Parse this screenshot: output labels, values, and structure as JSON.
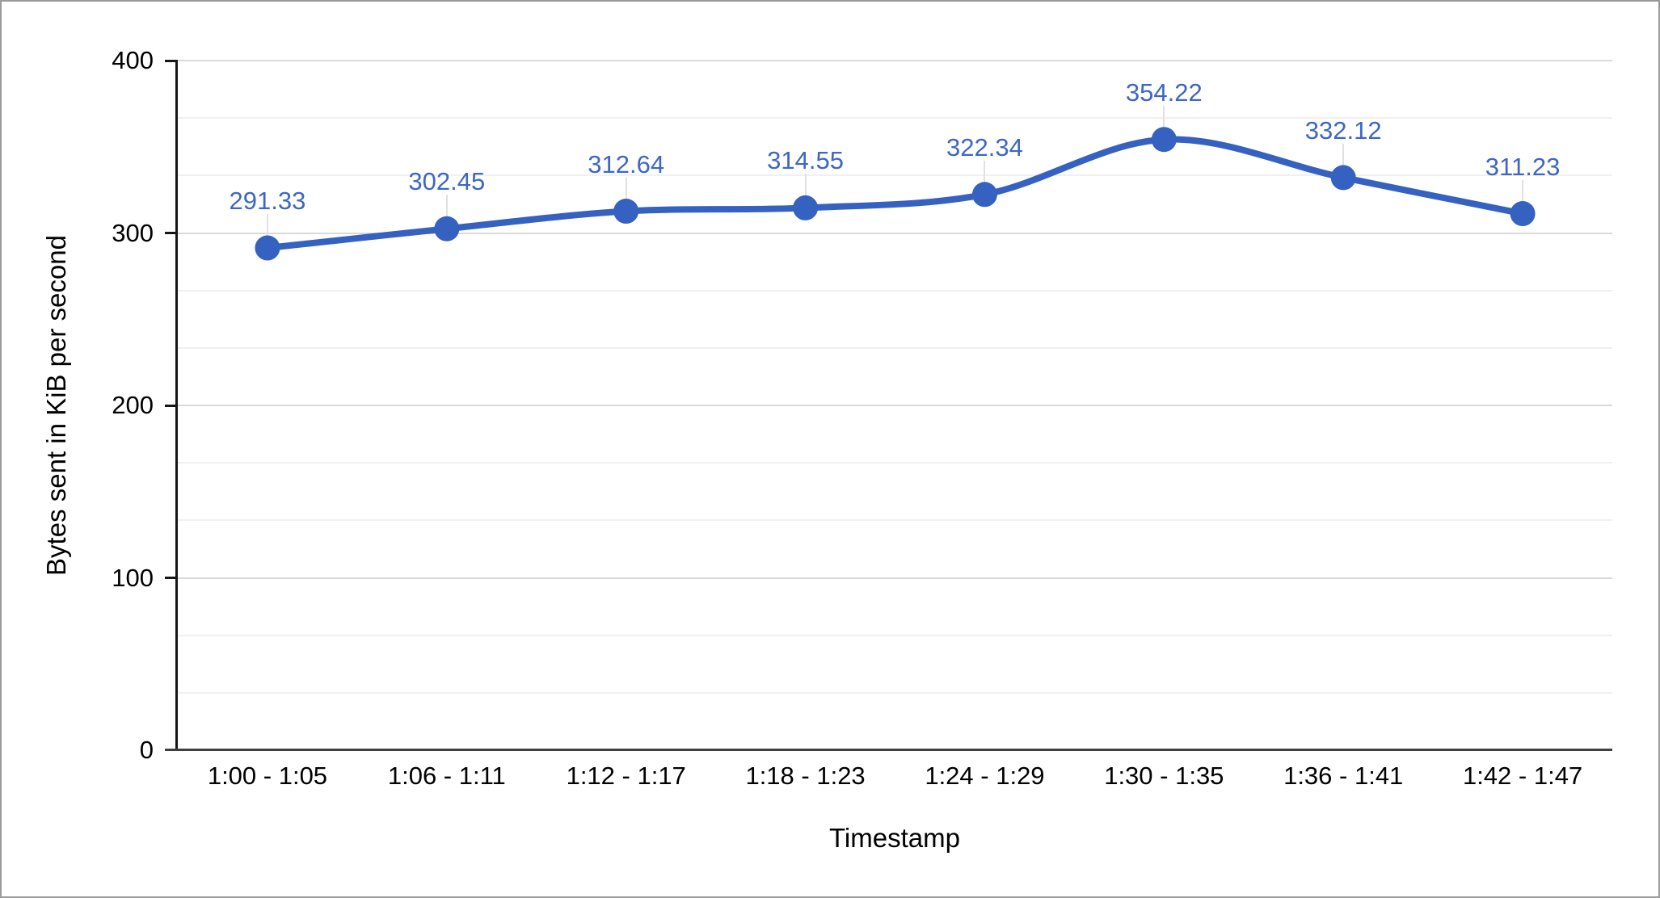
{
  "chart_data": {
    "type": "line",
    "smooth": true,
    "legend": "none",
    "xlabel": "Timestamp",
    "ylabel": "Bytes sent in KiB per second",
    "categories": [
      "1:00 - 1:05",
      "1:06 - 1:11",
      "1:12 - 1:17",
      "1:18 - 1:23",
      "1:24 - 1:29",
      "1:30 - 1:35",
      "1:36 - 1:41",
      "1:42 - 1:47"
    ],
    "values": [
      291.33,
      302.45,
      312.64,
      314.55,
      322.34,
      354.22,
      332.12,
      311.23
    ],
    "data_labels": [
      "291.33",
      "302.45",
      "312.64",
      "314.55",
      "322.34",
      "354.22",
      "332.12",
      "311.23"
    ],
    "ylim": [
      0,
      400
    ],
    "y_ticks": [
      0,
      100,
      200,
      300,
      400
    ],
    "y_minor_ticks": [
      33.333,
      66.667,
      133.333,
      166.667,
      233.333,
      266.667,
      333.333,
      366.667
    ],
    "grid": {
      "major": "on",
      "minor": "on"
    }
  },
  "colors": {
    "series": "#3561c0",
    "data_label_text": "#3d66c5",
    "grid_major": "#d9d9d9",
    "grid_minor": "#f0f0f0",
    "y_axis_line": "#161616",
    "x_axis_line": "#3f3f3f",
    "tick_text": "#000000",
    "leader_line": "#e0e0e0",
    "frame_border": "#9a9a9a",
    "background": "#ffffff"
  }
}
